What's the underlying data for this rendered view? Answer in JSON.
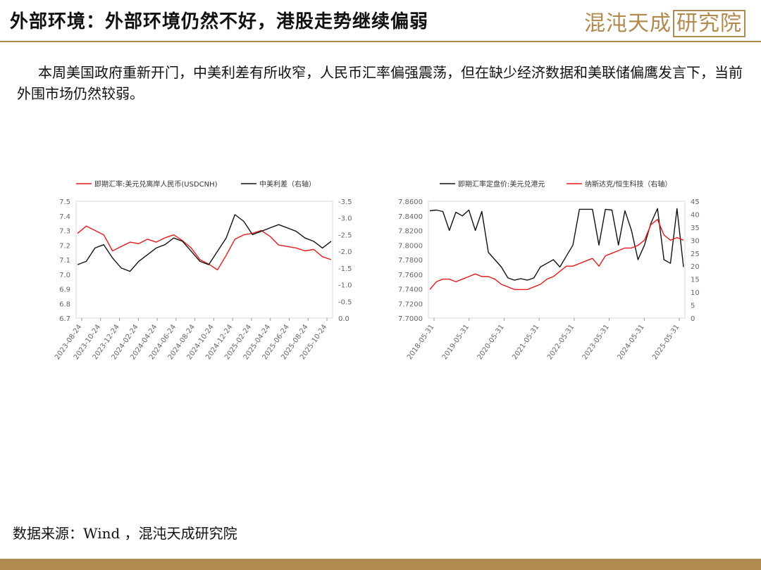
{
  "header": {
    "title": "外部环境：外部环境仍然不好，港股走势继续偏弱",
    "logo_text": "混沌天成",
    "logo_boxed": "研究院"
  },
  "body": {
    "paragraph": "本周美国政府重新开门，中美利差有所收窄，人民币汇率偏强震荡，但在缺少经济数据和美联储偏鹰发言下，当前外围市场仍然较弱。"
  },
  "footer": {
    "source": "数据来源：Wind ，混沌天成研究院"
  },
  "colors": {
    "accent": "#b08a4e",
    "red": "#e8191c",
    "black": "#111111"
  },
  "chart_data": [
    {
      "type": "line",
      "x_ticks": [
        "2023-08-24",
        "2023-10-24",
        "2023-12-24",
        "2024-02-24",
        "2024-04-24",
        "2024-06-24",
        "2024-08-24",
        "2024-10-24",
        "2024-12-24",
        "2025-02-24",
        "2025-04-24",
        "2025-06-24",
        "2025-08-24",
        "2025-10-24"
      ],
      "y_left": {
        "ticks": [
          "7.5",
          "7.4",
          "7.3",
          "7.2",
          "7.1",
          "7.0",
          "6.9",
          "6.8",
          "6.7"
        ],
        "min": 6.7,
        "max": 7.5
      },
      "y_right": {
        "ticks": [
          "-3.5",
          "-3.0",
          "-2.5",
          "-2.0",
          "-1.5",
          "-1.0",
          "-0.5",
          "0.0"
        ],
        "min": 0.0,
        "max": -3.5,
        "axis_label": "右轴"
      },
      "series": [
        {
          "name": "即期汇率:美元兑离岸人民币(USDCNH)",
          "axis": "left",
          "color": "#e8191c",
          "values": [
            7.28,
            7.33,
            7.3,
            7.27,
            7.16,
            7.19,
            7.22,
            7.21,
            7.24,
            7.22,
            7.25,
            7.27,
            7.23,
            7.18,
            7.1,
            7.07,
            7.03,
            7.13,
            7.24,
            7.27,
            7.28,
            7.3,
            7.26,
            7.2,
            7.19,
            7.18,
            7.16,
            7.17,
            7.12,
            7.1
          ]
        },
        {
          "name": "中美利差（右轴）",
          "axis": "right",
          "color": "#111111",
          "values": [
            -1.6,
            -1.7,
            -2.1,
            -2.2,
            -1.8,
            -1.5,
            -1.4,
            -1.7,
            -1.9,
            -2.1,
            -2.2,
            -2.4,
            -2.3,
            -2.0,
            -1.7,
            -1.6,
            -2.0,
            -2.4,
            -3.1,
            -2.9,
            -2.5,
            -2.6,
            -2.7,
            -2.8,
            -2.7,
            -2.6,
            -2.4,
            -2.3,
            -2.1,
            -2.3
          ]
        }
      ]
    },
    {
      "type": "line",
      "x_ticks": [
        "2018-05-31",
        "2019-05-31",
        "2020-05-31",
        "2021-05-31",
        "2022-05-31",
        "2023-05-31",
        "2024-05-31",
        "2025-05-31"
      ],
      "y_left": {
        "ticks": [
          "7.8600",
          "7.8400",
          "7.8200",
          "7.8000",
          "7.7800",
          "7.7600",
          "7.7400",
          "7.7200",
          "7.7000"
        ],
        "min": 7.7,
        "max": 7.86
      },
      "y_right": {
        "ticks": [
          "45",
          "40",
          "35",
          "30",
          "25",
          "20",
          "15",
          "10",
          "5",
          "0"
        ],
        "min": 0,
        "max": 45,
        "axis_label": "右轴"
      },
      "series": [
        {
          "name": "即期汇率定盘价:美元兑港元",
          "axis": "left",
          "color": "#111111",
          "values": [
            7.847,
            7.848,
            7.846,
            7.82,
            7.845,
            7.84,
            7.848,
            7.82,
            7.846,
            7.79,
            7.78,
            7.77,
            7.755,
            7.752,
            7.754,
            7.752,
            7.755,
            7.77,
            7.775,
            7.78,
            7.77,
            7.785,
            7.8,
            7.849,
            7.849,
            7.849,
            7.8,
            7.849,
            7.848,
            7.8,
            7.847,
            7.82,
            7.78,
            7.8,
            7.83,
            7.85,
            7.78,
            7.775,
            7.85,
            7.77
          ]
        },
        {
          "name": "纳斯达克/恒生科技（右轴）",
          "axis": "right",
          "color": "#e8191c",
          "values": [
            11,
            14,
            15,
            15,
            14,
            15,
            16,
            17,
            16,
            16,
            15,
            13,
            12,
            11,
            11,
            11,
            12,
            13,
            15,
            16,
            18,
            20,
            20,
            21,
            22,
            23,
            20,
            24,
            25,
            26,
            27,
            27,
            28,
            30,
            36,
            38,
            32,
            30,
            31,
            30
          ]
        }
      ]
    }
  ]
}
